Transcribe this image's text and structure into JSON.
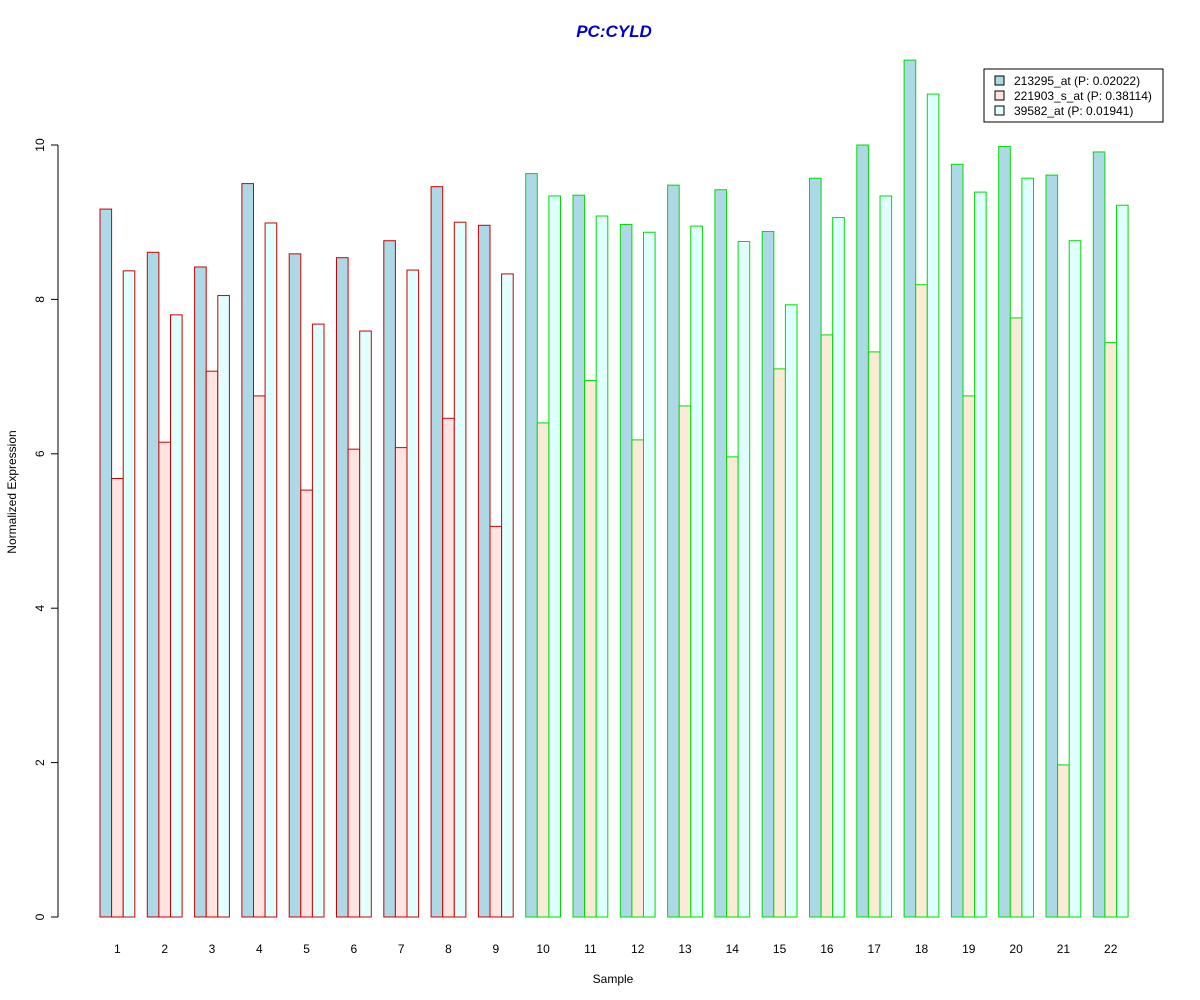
{
  "chart_data": {
    "type": "bar",
    "title": "PC:CYLD",
    "title_color": "#0000cc",
    "xlabel": "Sample",
    "ylabel": "Normalized Expression",
    "ylim": [
      0,
      11.2
    ],
    "yticks": [
      0,
      2,
      4,
      6,
      8,
      10
    ],
    "categories": [
      "1",
      "2",
      "3",
      "4",
      "5",
      "6",
      "7",
      "8",
      "9",
      "10",
      "11",
      "12",
      "13",
      "14",
      "15",
      "16",
      "17",
      "18",
      "19",
      "20",
      "21",
      "22"
    ],
    "group_border_colors": [
      "#cc0000",
      "#cc0000",
      "#cc0000",
      "#cc0000",
      "#cc0000",
      "#cc0000",
      "#cc0000",
      "#cc0000",
      "#cc0000",
      "#00dd00",
      "#00dd00",
      "#00dd00",
      "#00dd00",
      "#00dd00",
      "#00dd00",
      "#00dd00",
      "#00dd00",
      "#00dd00",
      "#00dd00",
      "#00dd00",
      "#00dd00",
      "#00dd00"
    ],
    "series": [
      {
        "name": "213295_at (P: 0.02022)",
        "fill": "#add8e6",
        "values": [
          9.17,
          8.61,
          8.42,
          9.5,
          8.59,
          8.54,
          8.76,
          9.46,
          8.96,
          9.63,
          9.35,
          8.97,
          9.48,
          9.42,
          8.88,
          9.57,
          10.0,
          11.1,
          9.75,
          9.98,
          9.61,
          9.91
        ]
      },
      {
        "name": "221903_s_at (P: 0.38114)",
        "fill_by_group": [
          "#ffe4e1",
          "#ffe4e1",
          "#ffe4e1",
          "#ffe4e1",
          "#ffe4e1",
          "#ffe4e1",
          "#ffe4e1",
          "#ffe4e1",
          "#ffe4e1",
          "#faebd7",
          "#faebd7",
          "#faebd7",
          "#faebd7",
          "#faebd7",
          "#faebd7",
          "#faebd7",
          "#faebd7",
          "#faebd7",
          "#faebd7",
          "#faebd7",
          "#faebd7",
          "#faebd7"
        ],
        "fill": "#ffe4e1",
        "values": [
          5.68,
          6.15,
          7.07,
          6.75,
          5.53,
          6.06,
          6.08,
          6.46,
          5.06,
          6.4,
          6.95,
          6.18,
          6.62,
          5.96,
          7.1,
          7.54,
          7.32,
          8.19,
          6.75,
          7.76,
          1.97,
          7.44
        ]
      },
      {
        "name": "39582_at (P: 0.01941)",
        "fill": "#e0ffff",
        "values": [
          8.37,
          7.8,
          8.05,
          8.99,
          7.68,
          7.59,
          8.38,
          9.0,
          8.33,
          9.34,
          9.08,
          8.87,
          8.95,
          8.75,
          7.93,
          9.06,
          9.34,
          10.66,
          9.39,
          9.57,
          8.76,
          9.22
        ]
      }
    ],
    "legend_position": "top-right",
    "grid": false
  }
}
